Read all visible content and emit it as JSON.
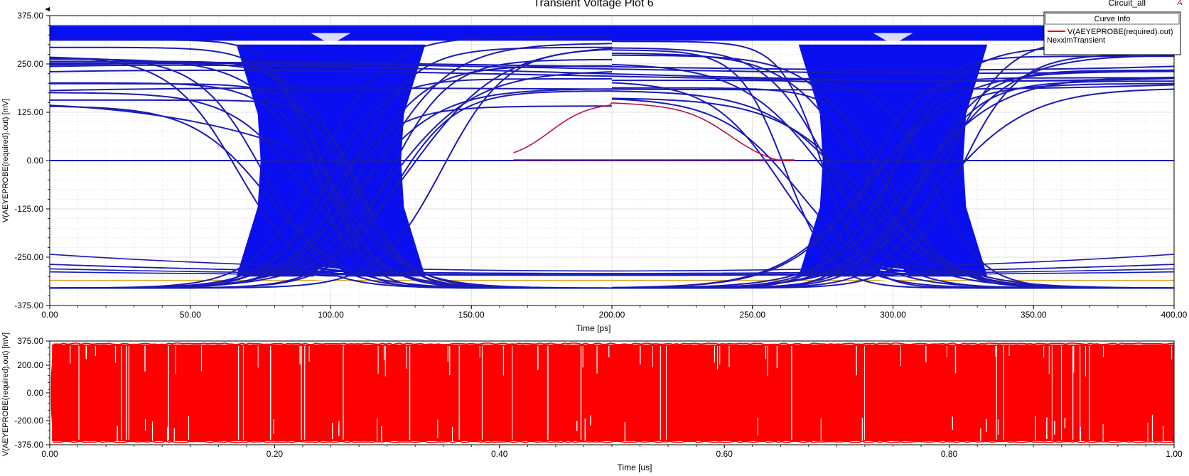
{
  "header": {
    "title": "Transient Voltage Plot 6",
    "design": "Circuit_all",
    "brand_mark": "A"
  },
  "legend": {
    "title": "Curve Info",
    "entry_label": "V(AEYEPROBE(required).out)",
    "entry_sub": "NexximTransient",
    "entry_color": "#e00000"
  },
  "colors": {
    "eye_trace": "#0a0ff0",
    "eye_overlay_trace": "#1a1ab8",
    "highlight_trace": "#c01040",
    "waveform": "#ff0000",
    "grid": "#d8d8d8"
  },
  "chart_data": [
    {
      "type": "line",
      "name": "eye-diagram",
      "xlabel": "Time [ps]",
      "ylabel": "V(AEYEPROBE(required).out) [mV]",
      "xlim": [
        0,
        400
      ],
      "ylim": [
        -375,
        375
      ],
      "x_ticks": [
        {
          "value": 0,
          "label": "0.00"
        },
        {
          "value": 50,
          "label": "50.00"
        },
        {
          "value": 100,
          "label": "100.00"
        },
        {
          "value": 150,
          "label": "150.00"
        },
        {
          "value": 200,
          "label": "200.00"
        },
        {
          "value": 250,
          "label": "250.00"
        },
        {
          "value": 300,
          "label": "300.00"
        },
        {
          "value": 350,
          "label": "350.00"
        },
        {
          "value": 400,
          "label": "400.00"
        }
      ],
      "y_ticks": [
        {
          "value": 375,
          "label": "375.00"
        },
        {
          "value": 250,
          "label": "250.00"
        },
        {
          "value": 125,
          "label": "125.00"
        },
        {
          "value": 0,
          "label": "0.00"
        },
        {
          "value": -125,
          "label": "-125.00"
        },
        {
          "value": -250,
          "label": "-250.00"
        },
        {
          "value": -375,
          "label": "-375.00"
        }
      ],
      "eye": {
        "unit_interval_ps": 200,
        "crossing_times_ps": [
          100,
          300
        ],
        "high_rail_mv": [
          310,
          350
        ],
        "low_rail_mv": [
          -350,
          -310
        ],
        "crossing_span_ps": 40,
        "highlight_trace_peak_mv": 150
      },
      "grid": true,
      "legend_position": "top-right"
    },
    {
      "type": "line",
      "name": "time-waveform",
      "xlabel": "Time [us]",
      "ylabel": "V(AEYEPROBE(required).out) [mV]",
      "xlim": [
        0,
        1
      ],
      "ylim": [
        -375,
        375
      ],
      "x_ticks": [
        {
          "value": 0,
          "label": "0.00"
        },
        {
          "value": 0.2,
          "label": "0.20"
        },
        {
          "value": 0.4,
          "label": "0.40"
        },
        {
          "value": 0.6,
          "label": "0.60"
        },
        {
          "value": 0.8,
          "label": "0.80"
        },
        {
          "value": 1.0,
          "label": "1.00"
        }
      ],
      "y_ticks": [
        {
          "value": 375,
          "label": "375.00"
        },
        {
          "value": 200,
          "label": "200.00"
        },
        {
          "value": 0,
          "label": "0.00"
        },
        {
          "value": -200,
          "label": "-200.00"
        },
        {
          "value": -375,
          "label": "-375.00"
        }
      ],
      "waveform_range_mv": [
        -350,
        350
      ],
      "grid": false
    }
  ]
}
